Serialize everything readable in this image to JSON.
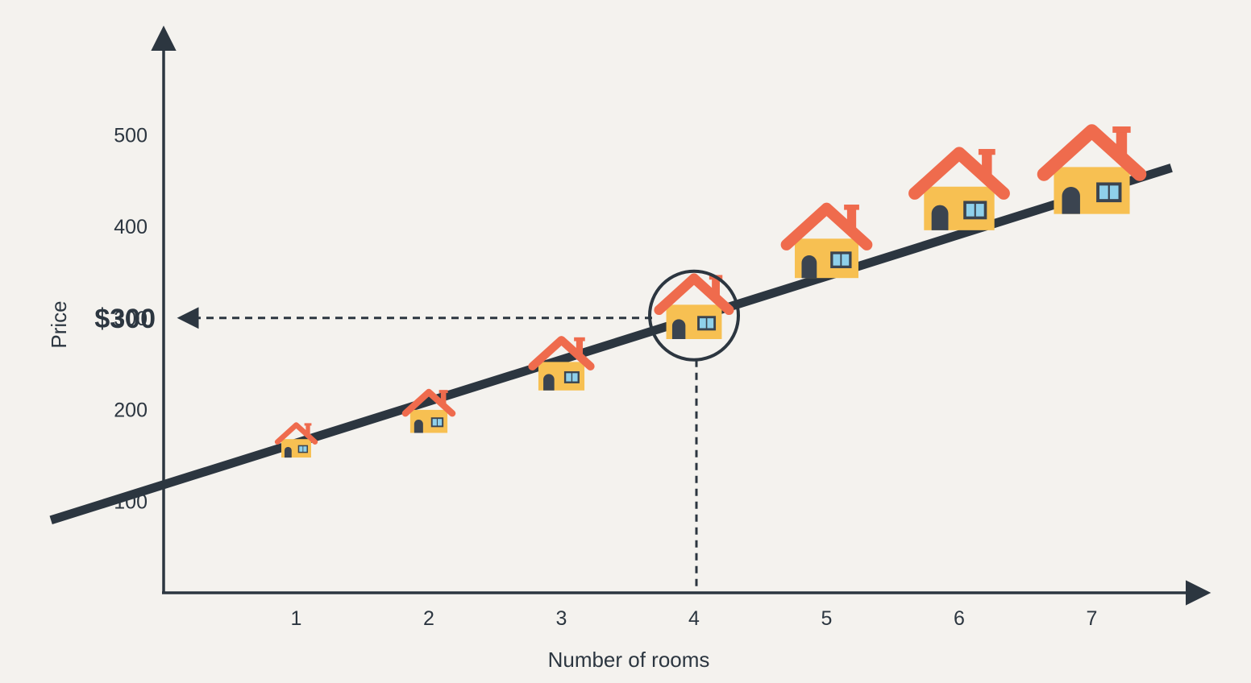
{
  "chart_data": {
    "type": "scatter",
    "xlabel": "Number of rooms",
    "ylabel": "Price",
    "x_ticks": [
      "1",
      "2",
      "3",
      "4",
      "5",
      "6",
      "7"
    ],
    "y_ticks": [
      "100",
      "200",
      "300",
      "400",
      "500"
    ],
    "xlim": [
      0,
      8
    ],
    "ylim": [
      0,
      600
    ],
    "series": [
      {
        "marker": "house-icon",
        "points": [
          {
            "x": 1,
            "y": 160
          },
          {
            "x": 2,
            "y": 190
          },
          {
            "x": 3,
            "y": 240
          },
          {
            "x": 4,
            "y": 300
          },
          {
            "x": 5,
            "y": 370
          },
          {
            "x": 6,
            "y": 425
          },
          {
            "x": 7,
            "y": 445
          }
        ]
      }
    ],
    "trend_line": {
      "intercept": 118,
      "slope": 45.5,
      "x_range": [
        -0.85,
        7.6
      ]
    },
    "highlight": {
      "x": 4,
      "y": 300,
      "label": "$300"
    },
    "grid": false,
    "colors": {
      "axis": "#2c3640",
      "trend": "#2c3640",
      "roof": "#ef6b4d",
      "body": "#f7c052",
      "door": "#3b4450",
      "window": "#8fd0ea",
      "background": "#f4f2ee"
    }
  }
}
